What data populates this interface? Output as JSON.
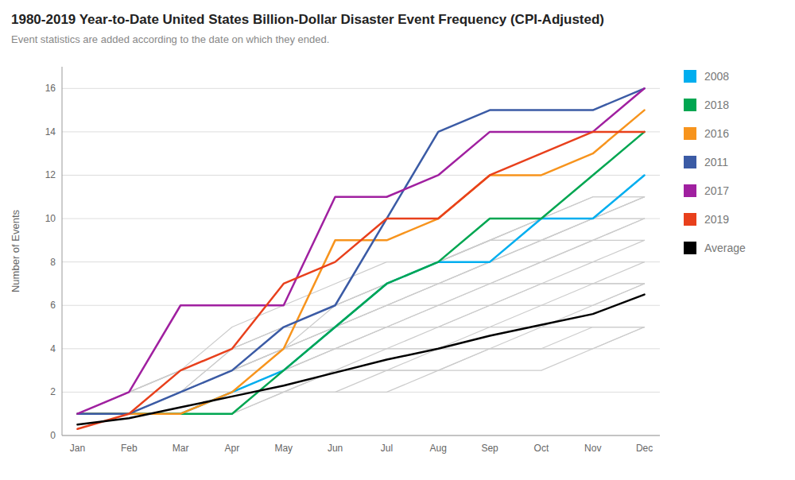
{
  "chart_data": {
    "type": "line",
    "title": "1980-2019 Year-to-Date United States Billion-Dollar Disaster Event Frequency (CPI-Adjusted)",
    "subtitle": "Event statistics are added according to the date on which they ended.",
    "y_label": "Number of Events",
    "categories": [
      "Jan",
      "Feb",
      "Mar",
      "Apr",
      "May",
      "Jun",
      "Jul",
      "Aug",
      "Sep",
      "Oct",
      "Nov",
      "Dec"
    ],
    "series": [
      {
        "color": "#CCCCCC",
        "values": [
          1,
          1,
          1,
          1,
          2,
          2,
          2,
          3,
          3,
          3,
          4,
          5
        ]
      },
      {
        "color": "#CCCCCC",
        "values": [
          1,
          1,
          1,
          1,
          2,
          2,
          3,
          3,
          4,
          4,
          4,
          5
        ]
      },
      {
        "color": "#CCCCCC",
        "values": [
          1,
          1,
          1,
          2,
          2,
          3,
          3,
          3,
          4,
          4,
          5,
          5
        ]
      },
      {
        "color": "#CCCCCC",
        "values": [
          1,
          1,
          1,
          2,
          2,
          3,
          3,
          4,
          4,
          5,
          5,
          5
        ]
      },
      {
        "color": "#CCCCCC",
        "values": [
          1,
          1,
          1,
          2,
          3,
          3,
          4,
          4,
          5,
          5,
          6,
          7
        ]
      },
      {
        "color": "#CCCCCC",
        "values": [
          1,
          1,
          2,
          2,
          3,
          4,
          4,
          5,
          5,
          6,
          6,
          7
        ]
      },
      {
        "color": "#CCCCCC",
        "values": [
          1,
          1,
          2,
          2,
          3,
          4,
          5,
          5,
          6,
          6,
          7,
          7
        ]
      },
      {
        "color": "#CCCCCC",
        "values": [
          1,
          1,
          2,
          3,
          3,
          4,
          5,
          5,
          6,
          7,
          7,
          7
        ]
      },
      {
        "color": "#CCCCCC",
        "values": [
          1,
          2,
          2,
          3,
          4,
          4,
          5,
          6,
          6,
          7,
          7,
          8
        ]
      },
      {
        "color": "#CCCCCC",
        "values": [
          1,
          1,
          2,
          3,
          4,
          5,
          5,
          6,
          7,
          7,
          8,
          8
        ]
      },
      {
        "color": "#CCCCCC",
        "values": [
          1,
          2,
          2,
          3,
          4,
          5,
          6,
          6,
          7,
          8,
          8,
          9
        ]
      },
      {
        "color": "#CCCCCC",
        "values": [
          1,
          1,
          2,
          3,
          4,
          5,
          6,
          7,
          7,
          8,
          9,
          9
        ]
      },
      {
        "color": "#CCCCCC",
        "values": [
          1,
          2,
          3,
          3,
          4,
          5,
          6,
          7,
          8,
          8,
          9,
          10
        ]
      },
      {
        "color": "#CCCCCC",
        "values": [
          1,
          1,
          2,
          3,
          5,
          5,
          6,
          7,
          8,
          9,
          9,
          10
        ]
      },
      {
        "color": "#CCCCCC",
        "values": [
          1,
          2,
          2,
          4,
          4,
          6,
          7,
          7,
          8,
          9,
          10,
          10
        ]
      },
      {
        "color": "#CCCCCC",
        "values": [
          1,
          2,
          3,
          4,
          5,
          6,
          7,
          8,
          9,
          9,
          10,
          11
        ]
      },
      {
        "color": "#CCCCCC",
        "values": [
          1,
          1,
          2,
          4,
          5,
          6,
          7,
          8,
          9,
          10,
          10,
          11
        ]
      },
      {
        "color": "#CCCCCC",
        "values": [
          1,
          2,
          3,
          4,
          5,
          5,
          7,
          8,
          9,
          9,
          10,
          11
        ]
      },
      {
        "color": "#CCCCCC",
        "values": [
          1,
          1,
          2,
          3,
          5,
          6,
          7,
          8,
          9,
          10,
          11,
          11
        ]
      },
      {
        "color": "#CCCCCC",
        "values": [
          1,
          2,
          3,
          5,
          6,
          7,
          8,
          8,
          9,
          10,
          11,
          11
        ]
      },
      {
        "name": "2008",
        "color": "#00AEEF",
        "values": [
          1,
          1,
          1,
          2,
          3,
          5,
          7,
          8,
          8,
          10,
          10,
          12
        ]
      },
      {
        "name": "2018",
        "color": "#00A651",
        "values": [
          1,
          1,
          1,
          1,
          3,
          5,
          7,
          8,
          10,
          10,
          12,
          14
        ]
      },
      {
        "name": "2016",
        "color": "#F7941D",
        "values": [
          1,
          1,
          1,
          2,
          4,
          9,
          9,
          10,
          12,
          12,
          13,
          15
        ]
      },
      {
        "name": "2011",
        "color": "#3B5BA5",
        "values": [
          1,
          1,
          2,
          3,
          5,
          6,
          10,
          14,
          15,
          15,
          15,
          16
        ]
      },
      {
        "name": "2017",
        "color": "#A020A0",
        "values": [
          1,
          2,
          6,
          6,
          6,
          11,
          11,
          12,
          14,
          14,
          14,
          16
        ]
      },
      {
        "name": "2019",
        "color": "#E8401C",
        "values": [
          0.3,
          1,
          3,
          4,
          7,
          8,
          10,
          10,
          12,
          13,
          14,
          14
        ]
      },
      {
        "name": "Average",
        "color": "#000000",
        "values": [
          0.5,
          0.8,
          1.3,
          1.8,
          2.3,
          2.9,
          3.5,
          4.0,
          4.6,
          5.1,
          5.6,
          6.5
        ]
      }
    ],
    "ylim": [
      0,
      17
    ],
    "yticks": [
      0,
      2,
      4,
      6,
      8,
      10,
      12,
      14,
      16
    ],
    "grid": true,
    "legend": "right"
  }
}
